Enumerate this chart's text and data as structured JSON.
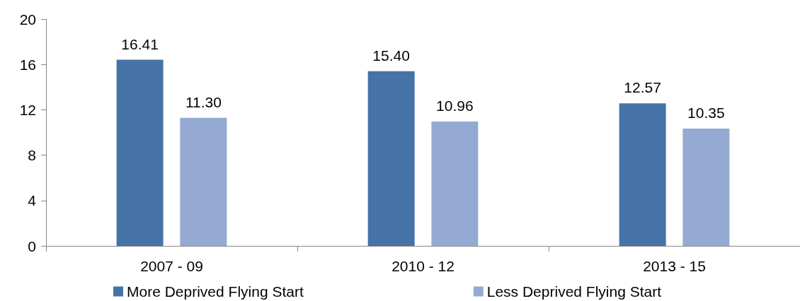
{
  "chart_data": {
    "type": "bar",
    "categories": [
      "2007 - 09",
      "2010 - 12",
      "2013 - 15"
    ],
    "series": [
      {
        "name": "More Deprived Flying Start",
        "color": "#4673a7",
        "values": [
          16.41,
          15.4,
          12.57
        ],
        "value_labels": [
          "16.41",
          "15.40",
          "12.57"
        ]
      },
      {
        "name": "Less Deprived Flying Start",
        "color": "#95aad2",
        "values": [
          11.3,
          10.96,
          10.35
        ],
        "value_labels": [
          "11.30",
          "10.96",
          "10.35"
        ]
      }
    ],
    "ylim": [
      0,
      20
    ],
    "yticks": [
      0,
      4,
      8,
      12,
      16,
      20
    ],
    "grid": false,
    "legend": "bottom"
  }
}
